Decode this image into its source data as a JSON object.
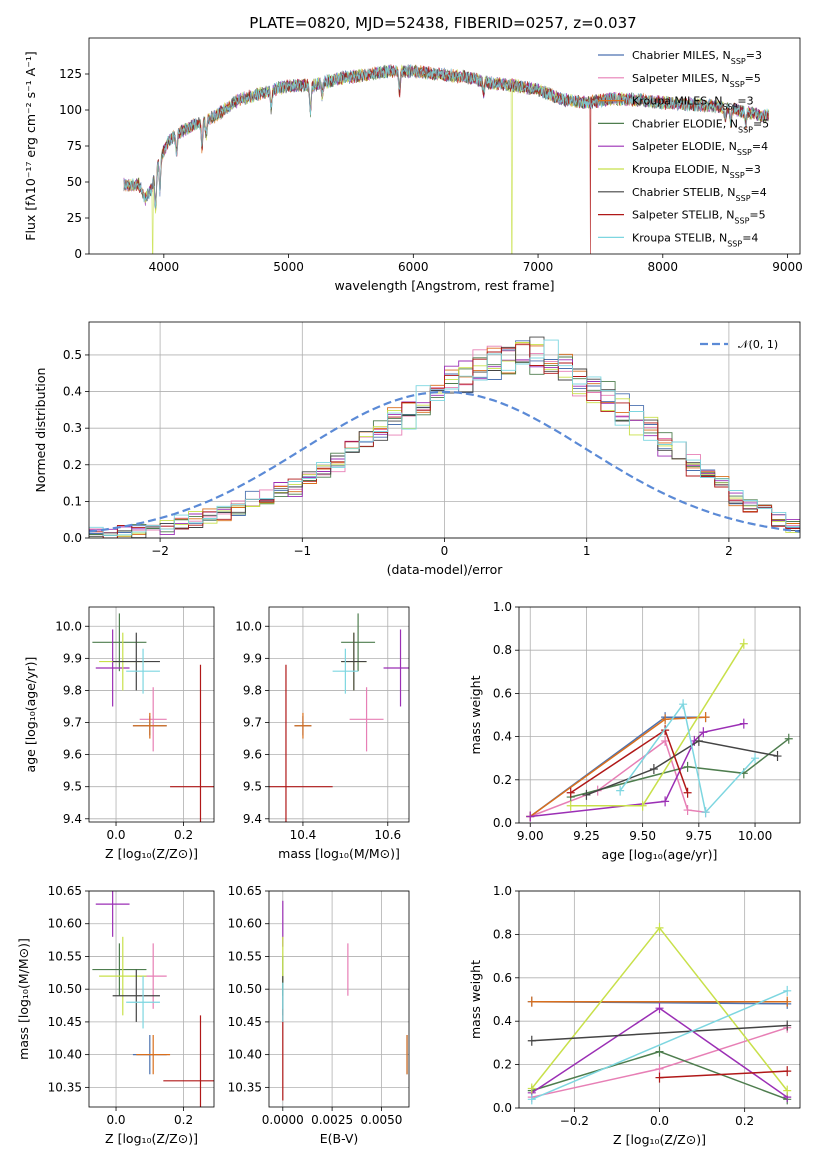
{
  "chart_data": [
    {
      "id": "spectrum",
      "type": "line",
      "title": "PLATE=0820, MJD=52438, FIBERID=0257, z=0.037",
      "xlabel": "wavelength [Angstrom, rest frame]",
      "ylabel": "Flux [fλ10⁻¹⁷ erg cm⁻² s⁻¹ A⁻¹]",
      "xlim": [
        3400,
        9100
      ],
      "ylim": [
        0,
        150
      ],
      "xticks": [
        "4000",
        "5000",
        "6000",
        "7000",
        "8000",
        "9000"
      ],
      "yticks": [
        "0",
        "25",
        "50",
        "75",
        "100",
        "125"
      ],
      "legend_position": "top-right",
      "continuum": [
        [
          3680,
          48
        ],
        [
          3800,
          48
        ],
        [
          3850,
          38
        ],
        [
          3900,
          45
        ],
        [
          3960,
          65
        ],
        [
          4050,
          80
        ],
        [
          4200,
          88
        ],
        [
          4400,
          95
        ],
        [
          4600,
          107
        ],
        [
          4800,
          112
        ],
        [
          5000,
          117
        ],
        [
          5200,
          117
        ],
        [
          5400,
          122
        ],
        [
          5600,
          124
        ],
        [
          5800,
          127
        ],
        [
          6000,
          127
        ],
        [
          6200,
          125
        ],
        [
          6400,
          123
        ],
        [
          6600,
          119
        ],
        [
          6800,
          117
        ],
        [
          7000,
          114
        ],
        [
          7200,
          107
        ],
        [
          7400,
          105
        ],
        [
          7600,
          108
        ],
        [
          7800,
          107
        ],
        [
          8000,
          105
        ],
        [
          8200,
          104
        ],
        [
          8400,
          103
        ],
        [
          8600,
          100
        ],
        [
          8800,
          96
        ]
      ],
      "absorption_features": [
        [
          3934,
          -25
        ],
        [
          3969,
          -22
        ],
        [
          4102,
          -12
        ],
        [
          4305,
          -18
        ],
        [
          4340,
          -10
        ],
        [
          4861,
          -12
        ],
        [
          5175,
          -18
        ],
        [
          5270,
          -9
        ],
        [
          5890,
          -15
        ],
        [
          6563,
          -8
        ],
        [
          8500,
          -8
        ],
        [
          8545,
          -9
        ],
        [
          8665,
          -8
        ]
      ],
      "dropouts": [
        {
          "series": "Kroupa ELODIE",
          "at": [
            3910,
            6790
          ]
        },
        {
          "series": "Salpeter STELIB",
          "at": [
            7420
          ]
        }
      ],
      "series": [
        {
          "name": "Chabrier MILES",
          "nssp": "3",
          "color": "#4c72b0"
        },
        {
          "name": "Salpeter MILES",
          "nssp": "5",
          "color": "#e77fb5"
        },
        {
          "name": "Kroupa MILES",
          "nssp": "3",
          "color": "#d96f1d"
        },
        {
          "name": "Chabrier ELODIE",
          "nssp": "5",
          "color": "#4e7d4e"
        },
        {
          "name": "Salpeter ELODIE",
          "nssp": "4",
          "color": "#9b2fb5"
        },
        {
          "name": "Kroupa ELODIE",
          "nssp": "3",
          "color": "#c8e04a"
        },
        {
          "name": "Chabrier STELIB",
          "nssp": "4",
          "color": "#444444"
        },
        {
          "name": "Salpeter STELIB",
          "nssp": "5",
          "color": "#b01818"
        },
        {
          "name": "Kroupa STELIB",
          "nssp": "4",
          "color": "#7dd6e0"
        }
      ]
    },
    {
      "id": "residuals",
      "type": "histogram",
      "xlabel": "(data-model)/error",
      "ylabel": "Normed distribution",
      "xlim": [
        -2.5,
        2.5
      ],
      "ylim": [
        0,
        0.59
      ],
      "xticks": [
        "−2",
        "−1",
        "0",
        "1",
        "2"
      ],
      "yticks": [
        "0.0",
        "0.1",
        "0.2",
        "0.3",
        "0.4",
        "0.5"
      ],
      "grid": true,
      "legend_position": "top-right",
      "reference": {
        "label": "𝒩(0, 1)",
        "mean": 0,
        "sd": 1,
        "color": "#5b8ad6"
      },
      "bin_width": 0.1,
      "bin_start": -2.5,
      "base_profile": [
        0.01,
        0.01,
        0.015,
        0.02,
        0.025,
        0.03,
        0.04,
        0.05,
        0.06,
        0.07,
        0.085,
        0.1,
        0.11,
        0.13,
        0.14,
        0.17,
        0.19,
        0.21,
        0.24,
        0.27,
        0.29,
        0.32,
        0.34,
        0.37,
        0.4,
        0.42,
        0.44,
        0.46,
        0.48,
        0.49,
        0.5,
        0.49,
        0.48,
        0.47,
        0.44,
        0.41,
        0.38,
        0.35,
        0.32,
        0.29,
        0.26,
        0.23,
        0.2,
        0.17,
        0.14,
        0.11,
        0.09,
        0.07,
        0.05,
        0.03
      ]
    },
    {
      "id": "age_vs_Z",
      "type": "errorbar",
      "xlabel": "Z [log₁₀(Z/Z⊙)]",
      "ylabel": "age  [log₁₀(age/yr)]",
      "xlim": [
        -0.08,
        0.29
      ],
      "ylim": [
        9.39,
        10.06
      ],
      "xticks": [
        "0.0",
        "0.2"
      ],
      "yticks": [
        "9.4",
        "9.5",
        "9.6",
        "9.7",
        "9.8",
        "9.9",
        "10.0"
      ],
      "points": [
        {
          "series": "Chabrier MILES",
          "x": 0.1,
          "y": 9.69,
          "xerr": 0.05,
          "yerr": 0.03
        },
        {
          "series": "Salpeter MILES",
          "x": 0.11,
          "y": 9.71,
          "xerr": 0.04,
          "yerr": 0.1
        },
        {
          "series": "Kroupa MILES",
          "x": 0.1,
          "y": 9.69,
          "xerr": 0.05,
          "yerr": 0.04
        },
        {
          "series": "Chabrier ELODIE",
          "x": 0.01,
          "y": 9.95,
          "xerr": 0.08,
          "yerr": 0.09
        },
        {
          "series": "Salpeter ELODIE",
          "x": -0.01,
          "y": 9.87,
          "xerr": 0.05,
          "yerr": 0.12
        },
        {
          "series": "Kroupa ELODIE",
          "x": 0.02,
          "y": 9.89,
          "xerr": 0.07,
          "yerr": 0.09
        },
        {
          "series": "Chabrier STELIB",
          "x": 0.06,
          "y": 9.89,
          "xerr": 0.07,
          "yerr": 0.09
        },
        {
          "series": "Salpeter STELIB",
          "x": 0.25,
          "y": 9.5,
          "xerr": 0.09,
          "yerr": 0.38
        },
        {
          "series": "Kroupa STELIB",
          "x": 0.08,
          "y": 9.86,
          "xerr": 0.05,
          "yerr": 0.07
        }
      ]
    },
    {
      "id": "age_vs_mass",
      "type": "errorbar",
      "xlabel": "mass [log₁₀(M/M⊙)]",
      "ylabel": "",
      "xlim": [
        10.32,
        10.65
      ],
      "ylim": [
        9.39,
        10.06
      ],
      "xticks": [
        "10.4",
        "10.6"
      ],
      "yticks": [
        "9.4",
        "9.5",
        "9.6",
        "9.7",
        "9.8",
        "9.9",
        "10.0"
      ],
      "points": [
        {
          "series": "Chabrier MILES",
          "x": 10.4,
          "y": 9.69,
          "xerr": 0.02,
          "yerr": 0.03
        },
        {
          "series": "Salpeter MILES",
          "x": 10.55,
          "y": 9.71,
          "xerr": 0.04,
          "yerr": 0.1
        },
        {
          "series": "Kroupa MILES",
          "x": 10.4,
          "y": 9.69,
          "xerr": 0.02,
          "yerr": 0.04
        },
        {
          "series": "Chabrier ELODIE",
          "x": 10.53,
          "y": 9.95,
          "xerr": 0.04,
          "yerr": 0.09
        },
        {
          "series": "Salpeter ELODIE",
          "x": 10.63,
          "y": 9.87,
          "xerr": 0.04,
          "yerr": 0.12
        },
        {
          "series": "Kroupa ELODIE",
          "x": 10.52,
          "y": 9.89,
          "xerr": 0.03,
          "yerr": 0.09
        },
        {
          "series": "Chabrier STELIB",
          "x": 10.52,
          "y": 9.89,
          "xerr": 0.03,
          "yerr": 0.09
        },
        {
          "series": "Salpeter STELIB",
          "x": 10.36,
          "y": 9.5,
          "xerr": 0.11,
          "yerr": 0.38
        },
        {
          "series": "Kroupa STELIB",
          "x": 10.5,
          "y": 9.86,
          "xerr": 0.03,
          "yerr": 0.07
        }
      ]
    },
    {
      "id": "weight_vs_age",
      "type": "line",
      "xlabel": "age  [log₁₀(age/yr)]",
      "ylabel": "mass weight",
      "xlim": [
        8.95,
        10.2
      ],
      "ylim": [
        0,
        1.0
      ],
      "xticks": [
        "9.00",
        "9.25",
        "9.50",
        "9.75",
        "10.00"
      ],
      "yticks": [
        "0.0",
        "0.2",
        "0.4",
        "0.6",
        "0.8",
        "1.0"
      ],
      "grid": true,
      "series": [
        {
          "name": "Chabrier MILES",
          "x": [
            9.0,
            9.6,
            9.78
          ],
          "y": [
            0.03,
            0.49,
            0.49
          ]
        },
        {
          "name": "Salpeter MILES",
          "x": [
            9.0,
            9.3,
            9.6,
            9.7,
            9.78
          ],
          "y": [
            0.03,
            0.15,
            0.38,
            0.06,
            0.05
          ]
        },
        {
          "name": "Kroupa MILES",
          "x": [
            9.0,
            9.6,
            9.78
          ],
          "y": [
            0.03,
            0.48,
            0.49
          ]
        },
        {
          "name": "Chabrier ELODIE",
          "x": [
            9.18,
            9.7,
            9.95,
            10.15
          ],
          "y": [
            0.12,
            0.26,
            0.23,
            0.39
          ]
        },
        {
          "name": "Salpeter ELODIE",
          "x": [
            9.0,
            9.6,
            9.73,
            9.77,
            9.95
          ],
          "y": [
            0.03,
            0.1,
            0.38,
            0.42,
            0.46
          ]
        },
        {
          "name": "Kroupa ELODIE",
          "x": [
            9.18,
            9.5,
            9.95
          ],
          "y": [
            0.08,
            0.08,
            0.83
          ]
        },
        {
          "name": "Chabrier STELIB",
          "x": [
            9.25,
            9.55,
            9.75,
            10.1
          ],
          "y": [
            0.13,
            0.25,
            0.38,
            0.31
          ]
        },
        {
          "name": "Salpeter STELIB",
          "x": [
            9.18,
            9.6,
            9.7
          ],
          "y": [
            0.14,
            0.43,
            0.14
          ]
        },
        {
          "name": "Kroupa STELIB",
          "x": [
            9.4,
            9.68,
            9.78,
            10.0
          ],
          "y": [
            0.15,
            0.55,
            0.05,
            0.3
          ]
        }
      ]
    },
    {
      "id": "mass_vs_Z",
      "type": "errorbar",
      "xlabel": "Z [log₁₀(Z/Z⊙)]",
      "ylabel": "mass [log₁₀(M/M⊙)]",
      "xlim": [
        -0.08,
        0.29
      ],
      "ylim": [
        10.32,
        10.65
      ],
      "xticks": [
        "0.0",
        "0.2"
      ],
      "yticks": [
        "10.35",
        "10.40",
        "10.45",
        "10.50",
        "10.55",
        "10.60",
        "10.65"
      ],
      "points": [
        {
          "series": "Chabrier MILES",
          "x": 0.1,
          "y": 10.4,
          "xerr": 0.05,
          "yerr": 0.03
        },
        {
          "series": "Salpeter MILES",
          "x": 0.11,
          "y": 10.52,
          "xerr": 0.04,
          "yerr": 0.05
        },
        {
          "series": "Kroupa MILES",
          "x": 0.11,
          "y": 10.4,
          "xerr": 0.05,
          "yerr": 0.03
        },
        {
          "series": "Chabrier ELODIE",
          "x": 0.01,
          "y": 10.53,
          "xerr": 0.08,
          "yerr": 0.04
        },
        {
          "series": "Salpeter ELODIE",
          "x": -0.01,
          "y": 10.63,
          "xerr": 0.05,
          "yerr": 0.05
        },
        {
          "series": "Kroupa ELODIE",
          "x": 0.02,
          "y": 10.52,
          "xerr": 0.07,
          "yerr": 0.06
        },
        {
          "series": "Chabrier STELIB",
          "x": 0.06,
          "y": 10.49,
          "xerr": 0.07,
          "yerr": 0.04
        },
        {
          "series": "Salpeter STELIB",
          "x": 0.25,
          "y": 10.36,
          "xerr": 0.11,
          "yerr": 0.1
        },
        {
          "series": "Kroupa STELIB",
          "x": 0.08,
          "y": 10.48,
          "xerr": 0.05,
          "yerr": 0.04
        }
      ]
    },
    {
      "id": "mass_vs_ebv",
      "type": "errorbar",
      "xlabel": "E(B-V)",
      "ylabel": "",
      "xlim": [
        -0.0007,
        0.0064
      ],
      "ylim": [
        10.32,
        10.65
      ],
      "xticks": [
        "0.0000",
        "0.0025",
        "0.0050"
      ],
      "yticks": [
        "10.35",
        "10.40",
        "10.45",
        "10.50",
        "10.55",
        "10.60",
        "10.65"
      ],
      "points": [
        {
          "series": "Chabrier MILES",
          "x": 0.0063,
          "y": 10.4,
          "xerr": 0,
          "yerr": 0.03
        },
        {
          "series": "Salpeter MILES",
          "x": 0.0033,
          "y": 10.53,
          "xerr": 0,
          "yerr": 0.04
        },
        {
          "series": "Kroupa MILES",
          "x": 0.0063,
          "y": 10.4,
          "xerr": 0,
          "yerr": 0.03
        },
        {
          "series": "Chabrier ELODIE",
          "x": 0.0,
          "y": 10.52,
          "xerr": 0,
          "yerr": 0.03
        },
        {
          "series": "Salpeter ELODIE",
          "x": 0.0,
          "y": 10.6,
          "xerr": 0,
          "yerr": 0.035
        },
        {
          "series": "Kroupa ELODIE",
          "x": 0.0,
          "y": 10.54,
          "xerr": 0,
          "yerr": 0.04
        },
        {
          "series": "Chabrier STELIB",
          "x": 0.0,
          "y": 10.49,
          "xerr": 0,
          "yerr": 0.03
        },
        {
          "series": "Salpeter STELIB",
          "x": 0.0,
          "y": 10.4,
          "xerr": 0,
          "yerr": 0.07
        },
        {
          "series": "Kroupa STELIB",
          "x": 0.0,
          "y": 10.48,
          "xerr": 0,
          "yerr": 0.03
        }
      ]
    },
    {
      "id": "weight_vs_Z",
      "type": "line",
      "xlabel": "Z [log₁₀(Z/Z⊙)]",
      "ylabel": "mass weight",
      "xlim": [
        -0.33,
        0.33
      ],
      "ylim": [
        0,
        1.0
      ],
      "xticks": [
        "−0.2",
        "0.0",
        "0.2"
      ],
      "yticks": [
        "0.0",
        "0.2",
        "0.4",
        "0.6",
        "0.8",
        "1.0"
      ],
      "grid": true,
      "series": [
        {
          "name": "Chabrier MILES",
          "x": [
            -0.3,
            0.3
          ],
          "y": [
            0.49,
            0.48
          ]
        },
        {
          "name": "Salpeter MILES",
          "x": [
            -0.3,
            0.0,
            0.3
          ],
          "y": [
            0.05,
            0.18,
            0.37
          ]
        },
        {
          "name": "Kroupa MILES",
          "x": [
            -0.3,
            0.3
          ],
          "y": [
            0.49,
            0.49
          ]
        },
        {
          "name": "Chabrier ELODIE",
          "x": [
            -0.3,
            0.0,
            0.3
          ],
          "y": [
            0.08,
            0.26,
            0.04
          ]
        },
        {
          "name": "Salpeter ELODIE",
          "x": [
            -0.3,
            0.0,
            0.3
          ],
          "y": [
            0.07,
            0.46,
            0.05
          ]
        },
        {
          "name": "Kroupa ELODIE",
          "x": [
            -0.3,
            0.0,
            0.3
          ],
          "y": [
            0.09,
            0.83,
            0.08
          ]
        },
        {
          "name": "Chabrier STELIB",
          "x": [
            -0.3,
            0.3
          ],
          "y": [
            0.31,
            0.38
          ]
        },
        {
          "name": "Salpeter STELIB",
          "x": [
            0.0,
            0.3
          ],
          "y": [
            0.14,
            0.17
          ]
        },
        {
          "name": "Kroupa STELIB",
          "x": [
            -0.3,
            0.3
          ],
          "y": [
            0.04,
            0.54
          ]
        }
      ]
    }
  ]
}
